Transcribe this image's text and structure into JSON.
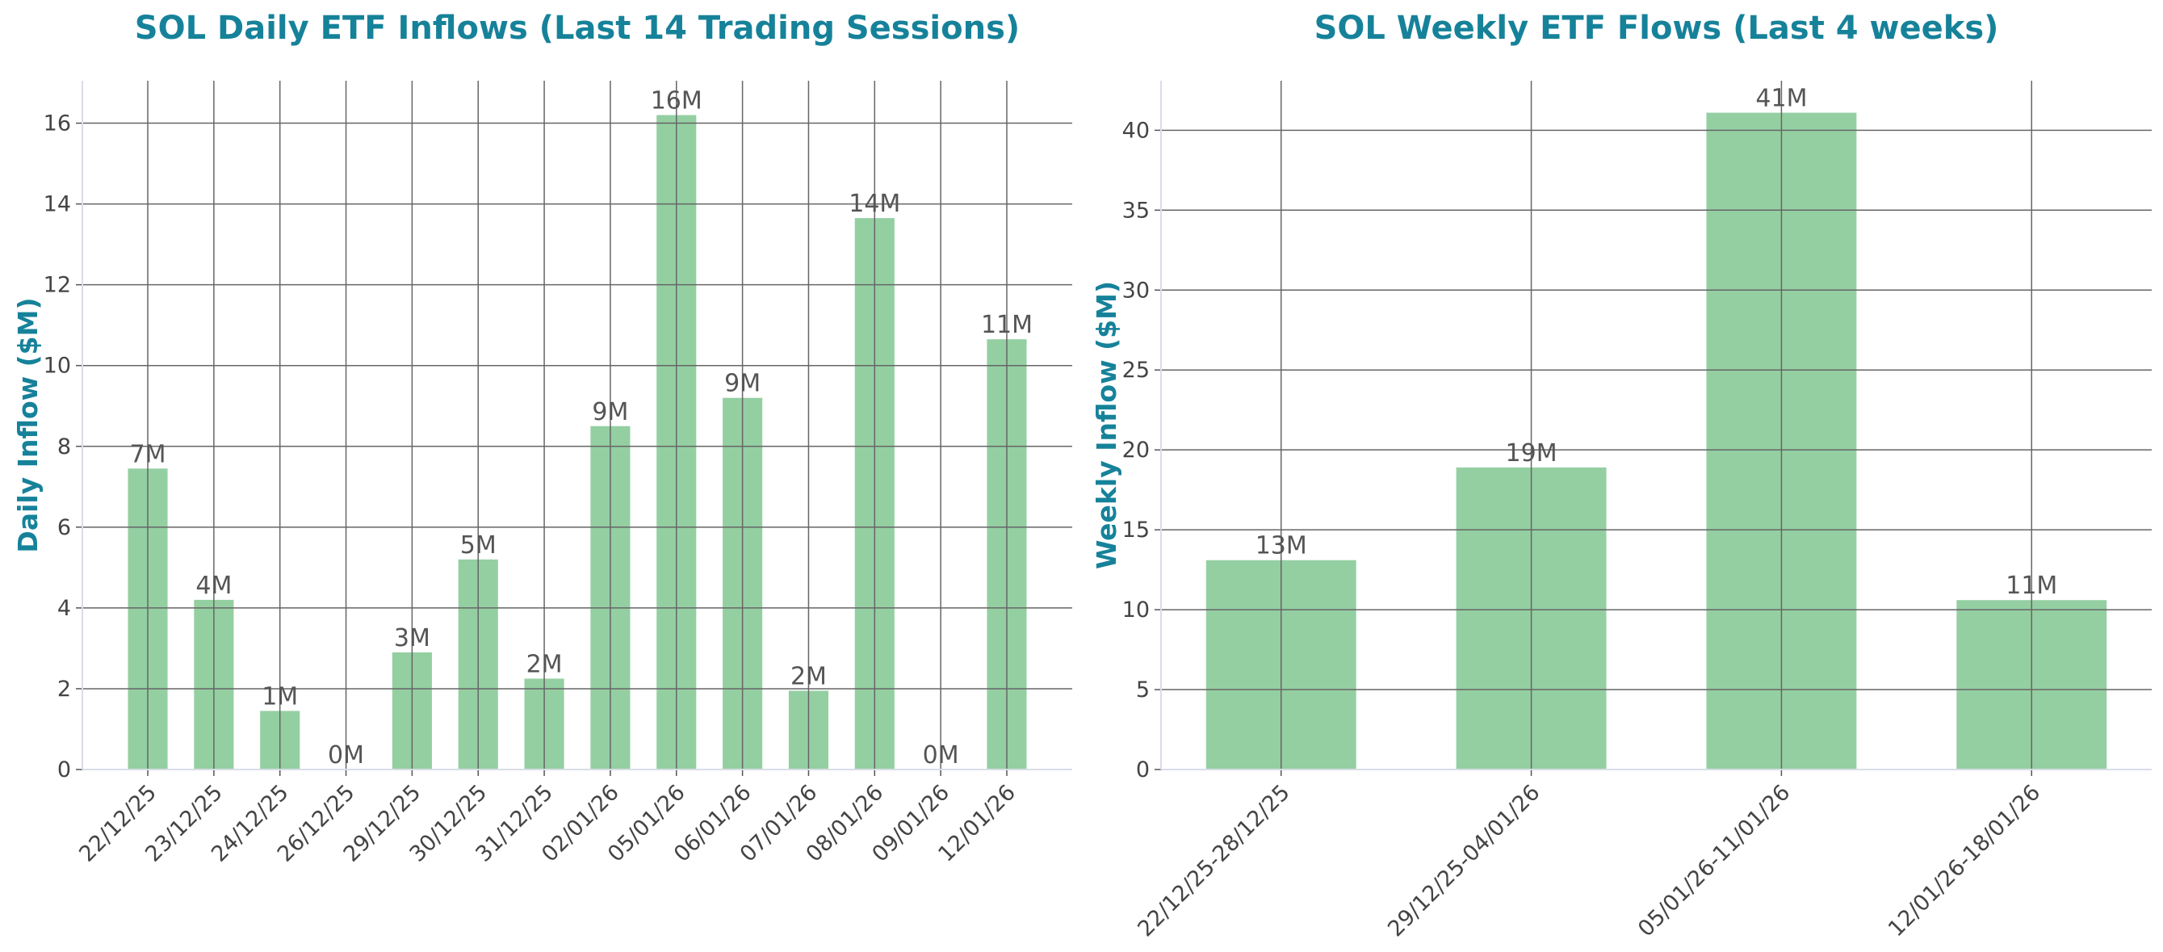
{
  "colors": {
    "bar": "#7cc48e",
    "title": "#16829a",
    "grid": "#666666",
    "spine": "#d9dde8"
  },
  "chart_data": [
    {
      "type": "bar",
      "title": "SOL Daily ETF Inflows (Last 14 Trading Sessions)",
      "xlabel": "",
      "ylabel": "Daily Inflow ($M)",
      "categories": [
        "22/12/25",
        "23/12/25",
        "24/12/25",
        "26/12/25",
        "29/12/25",
        "30/12/25",
        "31/12/25",
        "02/01/26",
        "05/01/26",
        "06/01/26",
        "07/01/26",
        "08/01/26",
        "09/01/26",
        "12/01/26"
      ],
      "values": [
        7.45,
        4.2,
        1.45,
        0,
        2.9,
        5.2,
        2.25,
        8.5,
        16.2,
        9.2,
        1.95,
        13.65,
        0,
        10.65
      ],
      "data_labels": [
        "7M",
        "4M",
        "1M",
        "0M",
        "3M",
        "5M",
        "2M",
        "9M",
        "16M",
        "9M",
        "2M",
        "14M",
        "0M",
        "11M"
      ],
      "yticks": [
        0,
        2,
        4,
        6,
        8,
        10,
        12,
        14,
        16
      ],
      "ylim": [
        0,
        17.05
      ],
      "grid": true
    },
    {
      "type": "bar",
      "title": "SOL Weekly ETF Flows (Last 4 weeks)",
      "xlabel": "",
      "ylabel": "Weekly Inflow ($M)",
      "categories": [
        "22/12/25-28/12/25",
        "29/12/25-04/01/26",
        "05/01/26-11/01/26",
        "12/01/26-18/01/26"
      ],
      "values": [
        13.1,
        18.9,
        41.1,
        10.6
      ],
      "data_labels": [
        "13M",
        "19M",
        "41M",
        "11M"
      ],
      "yticks": [
        0,
        5,
        10,
        15,
        20,
        25,
        30,
        35,
        40
      ],
      "ylim": [
        0,
        43.1
      ],
      "grid": true
    }
  ]
}
